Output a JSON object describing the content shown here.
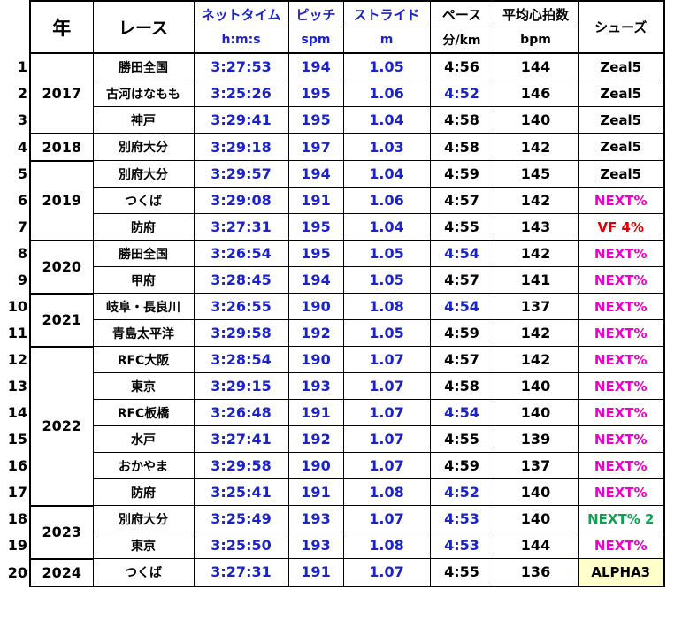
{
  "colors": {
    "blue": "#1b22c8",
    "black": "#000000",
    "magenta": "#ee00cc",
    "red": "#dd0000",
    "green": "#10a050",
    "highlight_bg": "#ffffcc"
  },
  "header": {
    "year": "年",
    "race": "レース",
    "net_time": "ネットタイム",
    "net_time_unit": "h:m:s",
    "pitch": "ピッチ",
    "pitch_unit": "spm",
    "stride": "ストライド",
    "stride_unit": "m",
    "pace": "ペース",
    "pace_unit": "分/km",
    "heart_rate": "平均心拍数",
    "heart_rate_unit": "bpm",
    "shoes": "シューズ"
  },
  "rows": [
    {
      "no": "1",
      "year": "2017",
      "race": "勝田全国",
      "time": "3:27:53",
      "pitch": "194",
      "stride": "1.05",
      "pace": "4:56",
      "pace_blue": false,
      "hr": "144",
      "shoes": "Zeal5",
      "shoe_color": "black"
    },
    {
      "no": "2",
      "year": "",
      "race": "古河はなもも",
      "time": "3:25:26",
      "pitch": "195",
      "stride": "1.06",
      "pace": "4:52",
      "pace_blue": true,
      "hr": "146",
      "shoes": "Zeal5",
      "shoe_color": "black"
    },
    {
      "no": "3",
      "year": "",
      "race": "神戸",
      "time": "3:29:41",
      "pitch": "195",
      "stride": "1.04",
      "pace": "4:58",
      "pace_blue": false,
      "hr": "140",
      "shoes": "Zeal5",
      "shoe_color": "black"
    },
    {
      "no": "4",
      "year": "2018",
      "race": "別府大分",
      "time": "3:29:18",
      "pitch": "197",
      "stride": "1.03",
      "pace": "4:58",
      "pace_blue": false,
      "hr": "142",
      "shoes": "Zeal5",
      "shoe_color": "black"
    },
    {
      "no": "5",
      "year": "2019",
      "race": "別府大分",
      "time": "3:29:57",
      "pitch": "194",
      "stride": "1.04",
      "pace": "4:59",
      "pace_blue": false,
      "hr": "145",
      "shoes": "Zeal5",
      "shoe_color": "black"
    },
    {
      "no": "6",
      "year": "",
      "race": "つくば",
      "time": "3:29:08",
      "pitch": "191",
      "stride": "1.06",
      "pace": "4:57",
      "pace_blue": false,
      "hr": "142",
      "shoes": "NEXT%",
      "shoe_color": "magenta"
    },
    {
      "no": "7",
      "year": "",
      "race": "防府",
      "time": "3:27:31",
      "pitch": "195",
      "stride": "1.04",
      "pace": "4:55",
      "pace_blue": false,
      "hr": "143",
      "shoes": "VF 4%",
      "shoe_color": "red"
    },
    {
      "no": "8",
      "year": "2020",
      "race": "勝田全国",
      "time": "3:26:54",
      "pitch": "195",
      "stride": "1.05",
      "pace": "4:54",
      "pace_blue": true,
      "hr": "142",
      "shoes": "NEXT%",
      "shoe_color": "magenta"
    },
    {
      "no": "9",
      "year": "",
      "race": "甲府",
      "time": "3:28:45",
      "pitch": "194",
      "stride": "1.05",
      "pace": "4:57",
      "pace_blue": false,
      "hr": "141",
      "shoes": "NEXT%",
      "shoe_color": "magenta"
    },
    {
      "no": "10",
      "year": "2021",
      "race": "岐阜・長良川",
      "time": "3:26:55",
      "pitch": "190",
      "stride": "1.08",
      "pace": "4:54",
      "pace_blue": true,
      "hr": "137",
      "shoes": "NEXT%",
      "shoe_color": "magenta"
    },
    {
      "no": "11",
      "year": "",
      "race": "青島太平洋",
      "time": "3:29:58",
      "pitch": "192",
      "stride": "1.05",
      "pace": "4:59",
      "pace_blue": false,
      "hr": "142",
      "shoes": "NEXT%",
      "shoe_color": "magenta"
    },
    {
      "no": "12",
      "year": "2022",
      "race": "RFC大阪",
      "time": "3:28:54",
      "pitch": "190",
      "stride": "1.07",
      "pace": "4:57",
      "pace_blue": false,
      "hr": "142",
      "shoes": "NEXT%",
      "shoe_color": "magenta"
    },
    {
      "no": "13",
      "year": "",
      "race": "東京",
      "time": "3:29:15",
      "pitch": "193",
      "stride": "1.07",
      "pace": "4:58",
      "pace_blue": false,
      "hr": "140",
      "shoes": "NEXT%",
      "shoe_color": "magenta"
    },
    {
      "no": "14",
      "year": "",
      "race": "RFC板橋",
      "time": "3:26:48",
      "pitch": "191",
      "stride": "1.07",
      "pace": "4:54",
      "pace_blue": true,
      "hr": "140",
      "shoes": "NEXT%",
      "shoe_color": "magenta"
    },
    {
      "no": "15",
      "year": "",
      "race": "水戸",
      "time": "3:27:41",
      "pitch": "192",
      "stride": "1.07",
      "pace": "4:55",
      "pace_blue": false,
      "hr": "139",
      "shoes": "NEXT%",
      "shoe_color": "magenta"
    },
    {
      "no": "16",
      "year": "",
      "race": "おかやま",
      "time": "3:29:58",
      "pitch": "190",
      "stride": "1.07",
      "pace": "4:59",
      "pace_blue": false,
      "hr": "137",
      "shoes": "NEXT%",
      "shoe_color": "magenta"
    },
    {
      "no": "17",
      "year": "",
      "race": "防府",
      "time": "3:25:41",
      "pitch": "191",
      "stride": "1.08",
      "pace": "4:52",
      "pace_blue": true,
      "hr": "140",
      "shoes": "NEXT%",
      "shoe_color": "magenta"
    },
    {
      "no": "18",
      "year": "2023",
      "race": "別府大分",
      "time": "3:25:49",
      "pitch": "193",
      "stride": "1.07",
      "pace": "4:53",
      "pace_blue": true,
      "hr": "140",
      "shoes": "NEXT% 2",
      "shoe_color": "green"
    },
    {
      "no": "19",
      "year": "",
      "race": "東京",
      "time": "3:25:50",
      "pitch": "193",
      "stride": "1.08",
      "pace": "4:53",
      "pace_blue": true,
      "hr": "144",
      "shoes": "NEXT%",
      "shoe_color": "magenta"
    },
    {
      "no": "20",
      "year": "2024",
      "race": "つくば",
      "time": "3:27:31",
      "pitch": "191",
      "stride": "1.07",
      "pace": "4:55",
      "pace_blue": false,
      "hr": "136",
      "shoes": "ALPHA3",
      "shoe_color": "black",
      "shoe_highlight": true
    }
  ],
  "year_groups": [
    {
      "year": "2017",
      "start": 0,
      "span": 3
    },
    {
      "year": "2018",
      "start": 3,
      "span": 1
    },
    {
      "year": "2019",
      "start": 4,
      "span": 3
    },
    {
      "year": "2020",
      "start": 7,
      "span": 2
    },
    {
      "year": "2021",
      "start": 9,
      "span": 2
    },
    {
      "year": "2022",
      "start": 11,
      "span": 6
    },
    {
      "year": "2023",
      "start": 17,
      "span": 2
    },
    {
      "year": "2024",
      "start": 19,
      "span": 1
    }
  ]
}
